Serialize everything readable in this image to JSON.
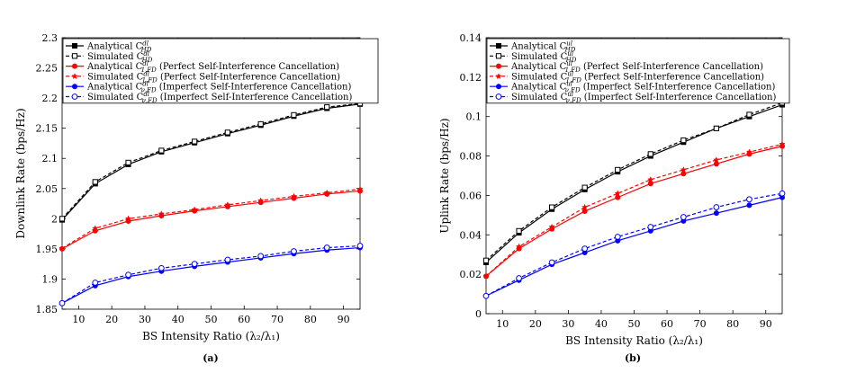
{
  "chart_data": [
    {
      "type": "line",
      "caption": "(a)",
      "xlabel": "BS Intensity Ratio (λ₂/λ₁)",
      "ylabel": "Downlink Rate (bps/Hz)",
      "xlim": [
        5,
        95
      ],
      "ylim": [
        1.85,
        2.3
      ],
      "xticks": [
        10,
        20,
        30,
        40,
        50,
        60,
        70,
        80,
        90
      ],
      "xtick_labels": [
        "10",
        "20",
        "30",
        "40",
        "50",
        "60",
        "70",
        "80",
        "90"
      ],
      "yticks": [
        1.85,
        1.9,
        1.95,
        2.0,
        2.05,
        2.1,
        2.15,
        2.2,
        2.25,
        2.3
      ],
      "ytick_labels": [
        "1.85",
        "1.9",
        "1.95",
        "2",
        "2.05",
        "2.1",
        "2.15",
        "2.2",
        "2.25",
        "2.3"
      ],
      "grid": false,
      "legend_position": "top-left",
      "x": [
        5,
        15,
        25,
        35,
        45,
        55,
        65,
        75,
        85,
        95
      ],
      "series": [
        {
          "name": "Analytical C_{HD}^{dl}",
          "legend": "Analytical C^dl_HD",
          "color": "#000000",
          "dash": "solid",
          "marker": "square-filled",
          "values": [
            1.998,
            2.058,
            2.09,
            2.111,
            2.126,
            2.141,
            2.155,
            2.17,
            2.183,
            2.19
          ]
        },
        {
          "name": "Simulated C_{HD}^{dl}",
          "legend": "Simulated C^dl_HD",
          "color": "#000000",
          "dash": "dashed",
          "marker": "square-open",
          "values": [
            2.0,
            2.061,
            2.093,
            2.113,
            2.128,
            2.143,
            2.157,
            2.172,
            2.185,
            2.191
          ]
        },
        {
          "name": "Analytical C_{1,FD}^{dl} (Perfect Self-Interference Cancellation)",
          "legend": "Analytical C^dl_1,FD  (Perfect Self-Interference Cancellation)",
          "color": "#ff0000",
          "dash": "solid",
          "marker": "circle-filled",
          "values": [
            1.95,
            1.98,
            1.996,
            2.005,
            2.013,
            2.02,
            2.027,
            2.034,
            2.041,
            2.046
          ]
        },
        {
          "name": "Simulated C_{1,FD}^{dl} (Perfect Self-Interference Cancellation)",
          "legend": "Simulated C^dl_1,FD  (Perfect Self-Interference Cancellation)",
          "color": "#ff0000",
          "dash": "dashed",
          "marker": "star",
          "values": [
            1.951,
            1.984,
            2.0,
            2.008,
            2.015,
            2.023,
            2.03,
            2.037,
            2.043,
            2.049
          ]
        },
        {
          "name": "Analytical C_{ν,FD}^{dl} (Imperfect Self-Interference Cancellation)",
          "legend": "Analytical C^dl_ν,FD  (Imperfect Self-Interference Cancellation)",
          "color": "#0000ff",
          "dash": "solid",
          "marker": "circle-filled",
          "values": [
            1.86,
            1.889,
            1.904,
            1.913,
            1.921,
            1.928,
            1.935,
            1.942,
            1.948,
            1.952
          ]
        },
        {
          "name": "Simulated C_{ν,FD}^{dl} (Imperfect Self-Interference Cancellation)",
          "legend": "Simulated C^dl_ν,FD  (Imperfect Self-Interference Cancellation)",
          "color": "#0000ff",
          "dash": "dashed",
          "marker": "circle-open",
          "values": [
            1.86,
            1.894,
            1.907,
            1.918,
            1.925,
            1.932,
            1.938,
            1.946,
            1.952,
            1.955
          ]
        }
      ]
    },
    {
      "type": "line",
      "caption": "(b)",
      "xlabel": "BS Intensity Ratio (λ₂/λ₁)",
      "ylabel": "Uplink Rate (bps/Hz)",
      "xlim": [
        5,
        95
      ],
      "ylim": [
        0,
        0.14
      ],
      "xticks": [
        10,
        20,
        30,
        40,
        50,
        60,
        70,
        80,
        90
      ],
      "xtick_labels": [
        "10",
        "20",
        "30",
        "40",
        "50",
        "60",
        "70",
        "80",
        "90"
      ],
      "yticks": [
        0,
        0.02,
        0.04,
        0.06,
        0.08,
        0.1,
        0.12,
        0.14
      ],
      "ytick_labels": [
        "0",
        "0.02",
        "0.04",
        "0.06",
        "0.08",
        "0.1",
        "0.12",
        "0.14"
      ],
      "grid": false,
      "legend_position": "top-left",
      "x": [
        5,
        15,
        25,
        35,
        45,
        55,
        65,
        75,
        85,
        95
      ],
      "series": [
        {
          "name": "Analytical C_{HD}^{ul}",
          "legend": "Analytical C^ul_HD",
          "color": "#000000",
          "dash": "solid",
          "marker": "square-filled",
          "values": [
            0.026,
            0.041,
            0.053,
            0.063,
            0.072,
            0.08,
            0.087,
            0.094,
            0.1,
            0.106
          ]
        },
        {
          "name": "Simulated C_{HD}^{ul}",
          "legend": "Simulated C^ul_HD",
          "color": "#000000",
          "dash": "dashed",
          "marker": "square-open",
          "values": [
            0.027,
            0.042,
            0.054,
            0.064,
            0.073,
            0.081,
            0.088,
            0.094,
            0.101,
            0.107
          ]
        },
        {
          "name": "Analytical C_{1,FD}^{ul} (Perfect Self-Interference Cancellation)",
          "legend": "Analytical C^ul_1,FD  (Perfect Self-Interference Cancellation)",
          "color": "#ff0000",
          "dash": "solid",
          "marker": "circle-filled",
          "values": [
            0.019,
            0.033,
            0.043,
            0.052,
            0.059,
            0.066,
            0.071,
            0.076,
            0.081,
            0.085
          ]
        },
        {
          "name": "Simulated C_{1,FD}^{ul} (Perfect Self-Interference Cancellation)",
          "legend": "Simulated C^ul_1,FD  (Perfect Self-Interference Cancellation)",
          "color": "#ff0000",
          "dash": "dashed",
          "marker": "star",
          "values": [
            0.019,
            0.034,
            0.044,
            0.054,
            0.061,
            0.068,
            0.073,
            0.078,
            0.082,
            0.086
          ]
        },
        {
          "name": "Analytical C_{ν,FD}^{ul} (Imperfect Self-Interference Cancellation)",
          "legend": "Analytical C^ul_ν,FD  (Imperfect Self-Interference Cancellation)",
          "color": "#0000ff",
          "dash": "solid",
          "marker": "circle-filled",
          "values": [
            0.009,
            0.017,
            0.025,
            0.031,
            0.037,
            0.042,
            0.047,
            0.051,
            0.055,
            0.059
          ]
        },
        {
          "name": "Simulated C_{ν,FD}^{ul} (Imperfect Self-Interference Cancellation)",
          "legend": "Simulated C^ul_ν,FD  (Imperfect Self-Interference Cancellation)",
          "color": "#0000ff",
          "dash": "dashed",
          "marker": "circle-open",
          "values": [
            0.009,
            0.018,
            0.026,
            0.033,
            0.039,
            0.044,
            0.049,
            0.054,
            0.058,
            0.061
          ]
        }
      ]
    }
  ]
}
